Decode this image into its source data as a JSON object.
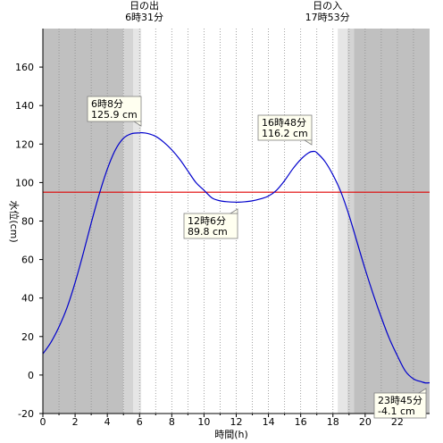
{
  "chart_data": {
    "type": "line",
    "xlabel": "時間(h)",
    "ylabel": "水位(cm)",
    "xlim": [
      0,
      24
    ],
    "ylim": [
      -20,
      180
    ],
    "x_ticks": [
      0,
      2,
      4,
      6,
      8,
      10,
      12,
      14,
      16,
      18,
      20,
      22
    ],
    "y_ticks": [
      -20,
      0,
      20,
      40,
      60,
      80,
      100,
      120,
      140,
      160
    ],
    "grid": "vertical dotted every hour",
    "reference_line": {
      "y": 95,
      "color": "#e00000"
    },
    "series": [
      {
        "color": "#0000cc",
        "x": [
          0,
          0.5,
          1,
          1.5,
          2,
          2.5,
          3,
          3.5,
          4,
          4.5,
          5,
          5.5,
          6,
          6.133,
          6.5,
          7,
          7.5,
          8,
          8.5,
          9,
          9.5,
          10,
          10.5,
          11,
          11.5,
          12,
          12.1,
          12.5,
          13,
          13.5,
          14,
          14.5,
          15,
          15.5,
          16,
          16.5,
          16.8,
          17,
          17.5,
          18,
          18.5,
          19,
          19.5,
          20,
          20.5,
          21,
          21.5,
          22,
          22.5,
          23,
          23.5,
          23.75,
          24
        ],
        "y": [
          11,
          17,
          25,
          35,
          48,
          63,
          79,
          94,
          107,
          117,
          123,
          125.4,
          125.8,
          125.9,
          125.5,
          124,
          121,
          117,
          112,
          106,
          100,
          96,
          92,
          90.5,
          90,
          89.8,
          89.8,
          90,
          90.5,
          91.5,
          93,
          96,
          101,
          107,
          112,
          115.5,
          116.2,
          115.5,
          111,
          104,
          95,
          83,
          69,
          55,
          42,
          30,
          19,
          10,
          2,
          -2,
          -3.5,
          -4.1,
          -4
        ]
      }
    ],
    "annotations": [
      {
        "time": "6時8分",
        "value": "125.9 cm"
      },
      {
        "time": "12時6分",
        "value": "89.8 cm"
      },
      {
        "time": "16時48分",
        "value": "116.2 cm"
      },
      {
        "time": "23時45分",
        "value": "-4.1 cm"
      }
    ],
    "sun": {
      "sunrise": {
        "label": "日の出",
        "time": "6時31分",
        "hour": 6.517
      },
      "sunset": {
        "label": "日の入",
        "time": "17時53分",
        "hour": 17.883
      }
    },
    "shading": [
      {
        "from": 0,
        "to": 5.0,
        "color": "#c0c0c0"
      },
      {
        "from": 5.0,
        "to": 5.6,
        "color": "#d4d4d4"
      },
      {
        "from": 5.6,
        "to": 6.1,
        "color": "#e6e6e6"
      },
      {
        "from": 18.3,
        "to": 18.9,
        "color": "#e6e6e6"
      },
      {
        "from": 18.9,
        "to": 19.3,
        "color": "#d4d4d4"
      },
      {
        "from": 19.3,
        "to": 24,
        "color": "#c0c0c0"
      }
    ]
  }
}
